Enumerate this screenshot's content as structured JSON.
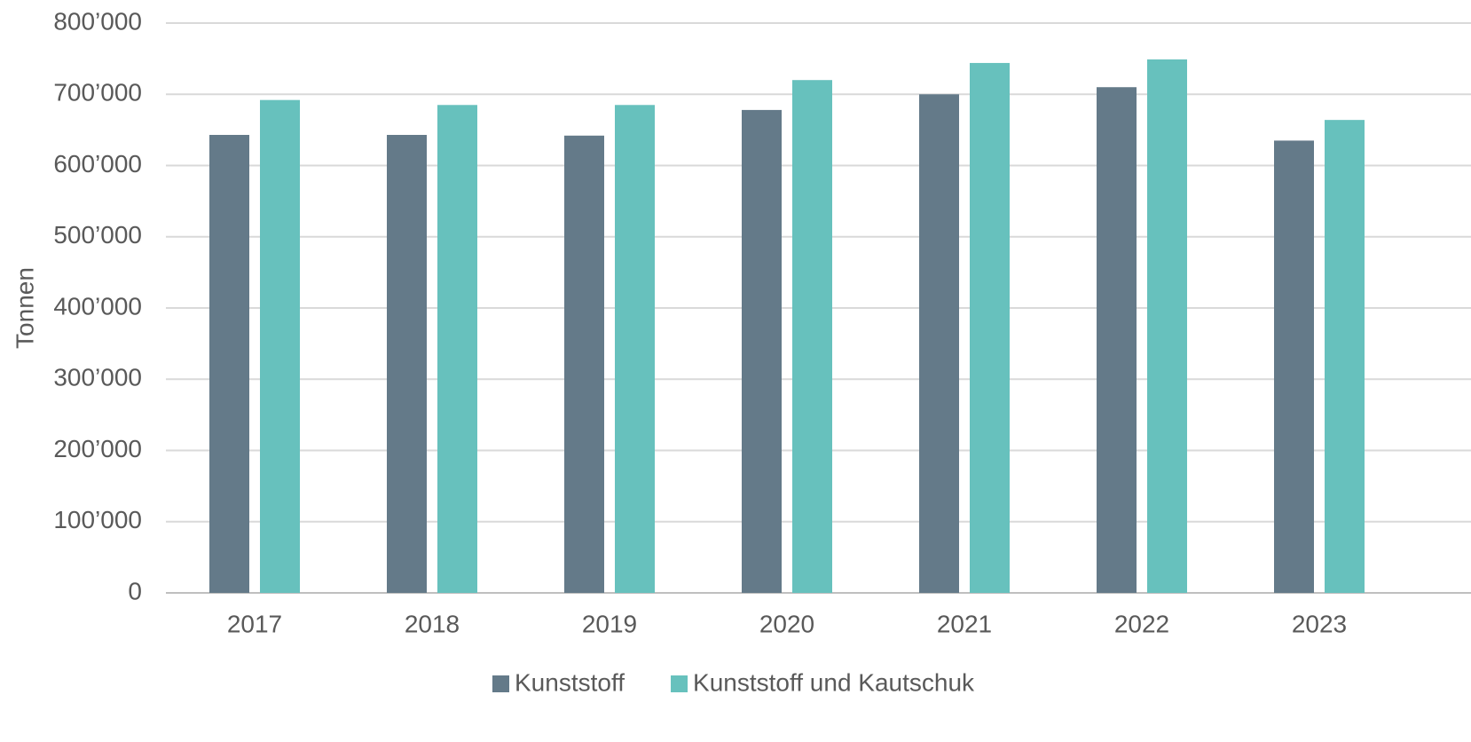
{
  "chart_data": {
    "type": "bar",
    "y_label": "Tonnen",
    "categories": [
      "2017",
      "2018",
      "2019",
      "2020",
      "2021",
      "2022",
      "2023"
    ],
    "series": [
      {
        "name": "Kunststoff",
        "color": "#647a89",
        "values": [
          643000,
          643000,
          642000,
          678000,
          700000,
          710000,
          635000
        ]
      },
      {
        "name": "Kunststoff und Kautschuk",
        "color": "#67c1bd",
        "values": [
          692000,
          685000,
          685000,
          720000,
          744000,
          749000,
          664000
        ]
      }
    ],
    "ylim": [
      0,
      800000
    ],
    "yticks": [
      0,
      {
        "value": 100000,
        "label": "100’000"
      },
      {
        "value": 200000,
        "label": "200’000"
      },
      {
        "value": 300000,
        "label": "300’000"
      },
      {
        "value": 400000,
        "label": "400’000"
      },
      {
        "value": 500000,
        "label": "500’000"
      },
      {
        "value": 600000,
        "label": "600’000"
      },
      {
        "value": 700000,
        "label": "700’000"
      },
      {
        "value": 800000,
        "label": "800’000"
      }
    ],
    "grid": true,
    "legend": "bottom"
  }
}
